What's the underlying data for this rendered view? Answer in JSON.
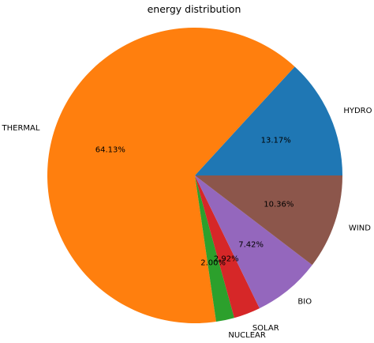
{
  "chart_data": {
    "type": "pie",
    "title": "energy distribution",
    "categories": [
      "HYDRO",
      "THERMAL",
      "NUCLEAR",
      "SOLAR",
      "BIO",
      "WIND"
    ],
    "values": [
      13.17,
      64.13,
      2.0,
      2.92,
      7.42,
      10.36
    ],
    "percent_labels": [
      "13.17%",
      "64.13%",
      "2.00%",
      "2.92%",
      "7.42%",
      "10.36%"
    ],
    "colors": [
      "#1f77b4",
      "#ff7f0e",
      "#2ca02c",
      "#d62728",
      "#9467bd",
      "#8c564b"
    ],
    "start_angle_deg": 0,
    "direction": "counterclockwise"
  }
}
